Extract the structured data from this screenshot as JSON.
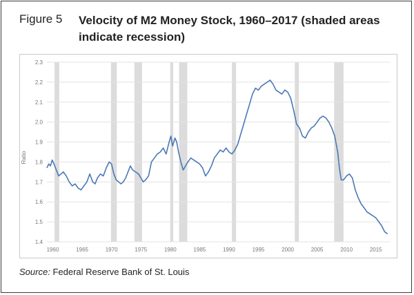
{
  "figure": {
    "label": "Figure 5",
    "title": "Velocity of M2 Money Stock, 1960–2017 (shaded areas indicate recession)",
    "source_prefix": "Source:",
    "source_text": "Federal Reserve Bank of St. Louis"
  },
  "chart_data": {
    "type": "line",
    "title": "",
    "xlabel": "",
    "ylabel": "Ratio",
    "xlim": [
      1959,
      2017.5
    ],
    "ylim": [
      1.4,
      2.3
    ],
    "grid": true,
    "yticks": [
      1.4,
      1.5,
      1.6,
      1.7,
      1.8,
      1.9,
      2.0,
      2.1,
      2.2,
      2.3
    ],
    "xticks": [
      1960,
      1965,
      1970,
      1975,
      1980,
      1985,
      1990,
      1995,
      2000,
      2005,
      2010,
      2015
    ],
    "colors": {
      "line": "#4a78b5",
      "recession": "#dcdcdc",
      "grid": "#e3e3e3",
      "axis_text": "#777777"
    },
    "recessions": [
      [
        1960.3,
        1961.1
      ],
      [
        1969.9,
        1970.9
      ],
      [
        1973.9,
        1975.2
      ],
      [
        1980.0,
        1980.5
      ],
      [
        1981.5,
        1982.9
      ],
      [
        1990.5,
        1991.2
      ],
      [
        2001.2,
        2001.9
      ],
      [
        2007.9,
        2009.5
      ]
    ],
    "series": [
      {
        "x": [
          1959.0,
          1959.3,
          1959.6,
          1959.9,
          1960.2,
          1960.6,
          1961.0,
          1961.4,
          1961.8,
          1962.3,
          1962.8,
          1963.3,
          1963.8,
          1964.3,
          1964.8,
          1965.3,
          1965.8,
          1966.3,
          1966.8,
          1967.2,
          1967.6,
          1968.1,
          1968.6,
          1969.1,
          1969.6,
          1970.0,
          1970.4,
          1970.8,
          1971.2,
          1971.6,
          1972.0,
          1972.4,
          1972.8,
          1973.2,
          1973.6,
          1974.1,
          1974.6,
          1975.0,
          1975.4,
          1975.8,
          1976.3,
          1976.8,
          1977.3,
          1977.8,
          1978.3,
          1978.8,
          1979.3,
          1979.8,
          1980.1,
          1980.4,
          1980.8,
          1981.1,
          1981.4,
          1981.8,
          1982.2,
          1982.6,
          1983.0,
          1983.5,
          1984.0,
          1984.5,
          1985.0,
          1985.5,
          1986.0,
          1986.5,
          1987.0,
          1987.5,
          1988.0,
          1988.5,
          1989.0,
          1989.5,
          1990.0,
          1990.5,
          1991.0,
          1991.5,
          1992.0,
          1992.5,
          1993.0,
          1993.5,
          1994.0,
          1994.5,
          1995.0,
          1995.5,
          1996.0,
          1996.5,
          1997.0,
          1997.5,
          1998.0,
          1998.5,
          1999.0,
          1999.5,
          2000.0,
          2000.5,
          2001.0,
          2001.5,
          2002.0,
          2002.5,
          2003.0,
          2003.5,
          2004.0,
          2004.5,
          2005.0,
          2005.5,
          2006.0,
          2006.5,
          2007.0,
          2007.5,
          2008.0,
          2008.5,
          2008.8,
          2009.1,
          2009.5,
          2010.0,
          2010.5,
          2011.0,
          2011.5,
          2012.0,
          2012.5,
          2013.0,
          2013.5,
          2014.0,
          2014.5,
          2015.0,
          2015.5,
          2016.0,
          2016.5,
          2017.0
        ],
        "y": [
          1.77,
          1.79,
          1.78,
          1.81,
          1.79,
          1.76,
          1.73,
          1.74,
          1.75,
          1.73,
          1.7,
          1.68,
          1.69,
          1.67,
          1.66,
          1.68,
          1.7,
          1.74,
          1.7,
          1.69,
          1.72,
          1.74,
          1.73,
          1.77,
          1.8,
          1.79,
          1.74,
          1.71,
          1.7,
          1.69,
          1.7,
          1.72,
          1.75,
          1.78,
          1.76,
          1.75,
          1.74,
          1.72,
          1.7,
          1.71,
          1.73,
          1.8,
          1.82,
          1.84,
          1.85,
          1.87,
          1.84,
          1.9,
          1.93,
          1.88,
          1.92,
          1.9,
          1.85,
          1.8,
          1.76,
          1.78,
          1.8,
          1.82,
          1.81,
          1.8,
          1.79,
          1.77,
          1.73,
          1.75,
          1.78,
          1.82,
          1.84,
          1.86,
          1.85,
          1.87,
          1.85,
          1.84,
          1.86,
          1.89,
          1.94,
          1.99,
          2.04,
          2.09,
          2.14,
          2.17,
          2.16,
          2.18,
          2.19,
          2.2,
          2.21,
          2.19,
          2.16,
          2.15,
          2.14,
          2.16,
          2.15,
          2.12,
          2.06,
          1.99,
          1.97,
          1.93,
          1.92,
          1.95,
          1.97,
          1.98,
          2.0,
          2.02,
          2.03,
          2.02,
          2.0,
          1.97,
          1.93,
          1.85,
          1.77,
          1.71,
          1.71,
          1.73,
          1.74,
          1.72,
          1.66,
          1.62,
          1.59,
          1.57,
          1.55,
          1.54,
          1.53,
          1.52,
          1.5,
          1.48,
          1.45,
          1.44
        ]
      }
    ]
  }
}
